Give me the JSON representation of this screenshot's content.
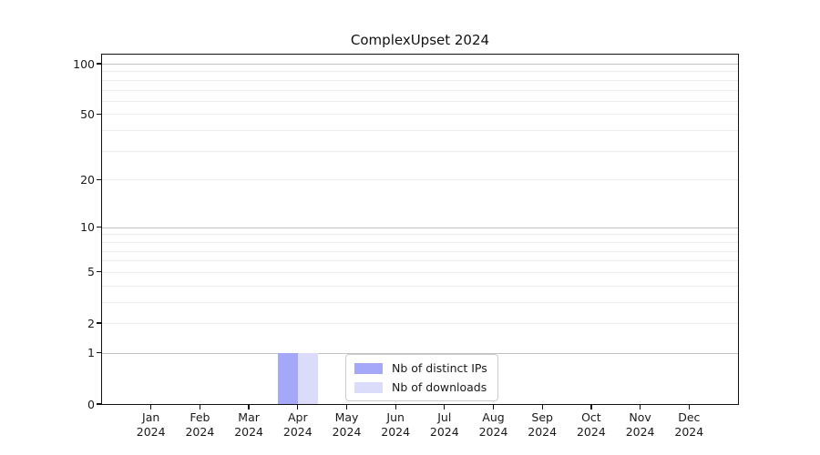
{
  "chart_data": {
    "type": "bar",
    "title": "ComplexUpset 2024",
    "x_tick_months": [
      "Jan",
      "Feb",
      "Mar",
      "Apr",
      "May",
      "Jun",
      "Jul",
      "Aug",
      "Sep",
      "Oct",
      "Nov",
      "Dec"
    ],
    "x_tick_year": "2024",
    "categories": [
      "Jan 2024",
      "Feb 2024",
      "Mar 2024",
      "Apr 2024",
      "May 2024",
      "Jun 2024",
      "Jul 2024",
      "Aug 2024",
      "Sep 2024",
      "Oct 2024",
      "Nov 2024",
      "Dec 2024"
    ],
    "series": [
      {
        "name": "Nb of distinct IPs",
        "color": "#a5a7f8",
        "values": [
          0,
          0,
          0,
          1,
          0,
          0,
          0,
          0,
          0,
          0,
          0,
          0
        ]
      },
      {
        "name": "Nb of downloads",
        "color": "#dbdcfa",
        "values": [
          0,
          0,
          0,
          1,
          0,
          0,
          0,
          0,
          0,
          0,
          0,
          0
        ]
      }
    ],
    "yscale": "log1p",
    "ylim": [
      0,
      113
    ],
    "yticks": [
      0,
      1,
      2,
      5,
      10,
      20,
      50,
      100
    ],
    "grid": {
      "major_ticks": [
        1,
        10,
        100
      ],
      "minor_ticks": [
        2,
        3,
        4,
        5,
        6,
        7,
        8,
        9,
        20,
        30,
        40,
        50,
        60,
        70,
        80,
        90
      ],
      "major_color": "#c2c2c2",
      "minor_color": "#ececec",
      "orientation": "horizontal"
    },
    "legend": {
      "position": "inside lower center",
      "frame": true
    }
  }
}
